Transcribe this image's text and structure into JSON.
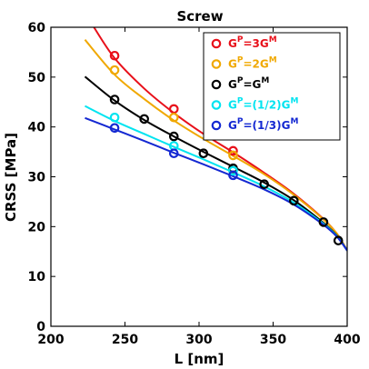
{
  "chart_data": {
    "type": "scatter",
    "title": "Screw",
    "xlabel": "L [nm]",
    "ylabel": "CRSS [MPa]",
    "xlim": [
      200,
      400
    ],
    "ylim": [
      0,
      60
    ],
    "xticks": [
      "200",
      "250",
      "300",
      "350",
      "400"
    ],
    "yticks": [
      "0",
      "10",
      "20",
      "30",
      "40",
      "50",
      "60"
    ],
    "legend_position": "top-right",
    "grid": false,
    "series": [
      {
        "legend_main": "G",
        "legend_sup1": "P",
        "legend_mid": "=3G",
        "legend_sup2": "M",
        "color": "#e8101a",
        "points": {
          "x": [
            243,
            283,
            323
          ],
          "y": [
            54.3,
            43.6,
            35.2
          ]
        },
        "curve": {
          "x": [
            228,
            243,
            263,
            283,
            303,
            323,
            343,
            363,
            383,
            393,
            400
          ],
          "y": [
            60.5,
            53.8,
            47.7,
            42.8,
            38.6,
            34.9,
            31.0,
            26.8,
            21.8,
            18.6,
            15.2
          ]
        }
      },
      {
        "legend_main": "G",
        "legend_sup1": "P",
        "legend_mid": "=2G",
        "legend_sup2": "M",
        "color": "#f0a800",
        "points": {
          "x": [
            243,
            283,
            323
          ],
          "y": [
            51.4,
            41.9,
            34.3
          ]
        },
        "curve": {
          "x": [
            223,
            243,
            263,
            283,
            303,
            323,
            343,
            363,
            383,
            393,
            400
          ],
          "y": [
            57.5,
            50.5,
            45.6,
            41.3,
            37.6,
            34.2,
            30.7,
            26.6,
            21.7,
            18.6,
            15.2
          ]
        }
      },
      {
        "legend_main": "G",
        "legend_sup1": "P",
        "legend_mid": "=G",
        "legend_sup2": "M",
        "color": "#000000",
        "points": {
          "x": [
            243,
            263,
            283,
            303,
            323,
            344,
            364,
            384,
            394
          ],
          "y": [
            45.5,
            41.6,
            38.1,
            34.7,
            31.7,
            28.5,
            25.2,
            20.9,
            17.2
          ]
        },
        "curve": {
          "x": [
            223,
            243,
            263,
            283,
            303,
            323,
            343,
            363,
            383,
            393,
            400
          ],
          "y": [
            50.1,
            45.3,
            41.4,
            38.1,
            35.0,
            32.0,
            29.0,
            25.5,
            21.0,
            18.2,
            15.2
          ]
        }
      },
      {
        "legend_main": "G",
        "legend_sup1": "P",
        "legend_mid": "=(1/2)G",
        "legend_sup2": "M",
        "color": "#00e4f0",
        "points": {
          "x": [
            243,
            283,
            323
          ],
          "y": [
            41.9,
            36.2,
            31.2
          ]
        },
        "curve": {
          "x": [
            223,
            243,
            263,
            283,
            303,
            323,
            343,
            363,
            383,
            393,
            400
          ],
          "y": [
            44.2,
            41.2,
            38.6,
            36.0,
            33.5,
            30.9,
            28.2,
            25.0,
            20.8,
            18.1,
            15.2
          ]
        }
      },
      {
        "legend_main": "G",
        "legend_sup1": "P",
        "legend_mid": "=(1/3)G",
        "legend_sup2": "M",
        "color": "#1428d2",
        "points": {
          "x": [
            243,
            283,
            323
          ],
          "y": [
            39.8,
            34.7,
            30.3
          ]
        },
        "curve": {
          "x": [
            223,
            243,
            263,
            283,
            303,
            323,
            343,
            363,
            383,
            393,
            400
          ],
          "y": [
            41.8,
            39.5,
            37.2,
            34.8,
            32.5,
            30.1,
            27.6,
            24.6,
            20.6,
            18.0,
            15.2
          ]
        }
      }
    ]
  }
}
